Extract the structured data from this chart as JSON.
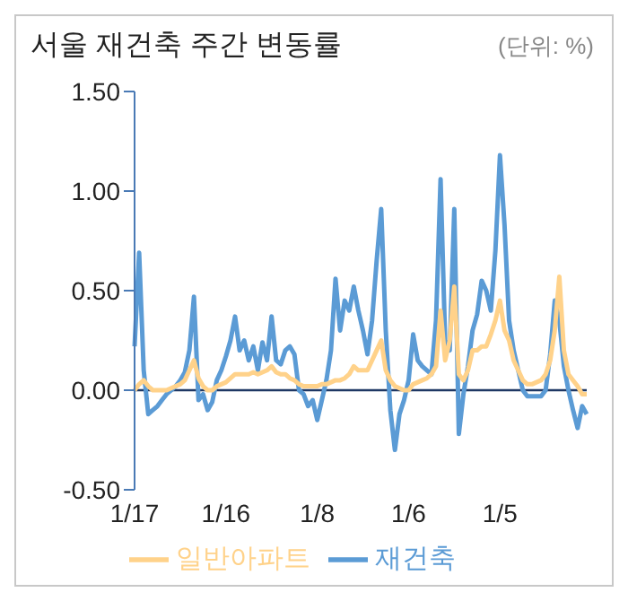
{
  "chart_data": {
    "type": "line",
    "title": "서울 재건축 주간 변동률",
    "annotations": [
      "(단위: %)"
    ],
    "categories": [
      "1/17",
      null,
      null,
      null,
      null,
      null,
      null,
      null,
      null,
      null,
      null,
      null,
      null,
      null,
      null,
      null,
      null,
      null,
      null,
      null,
      "1/16",
      null,
      null,
      null,
      null,
      null,
      null,
      null,
      null,
      null,
      null,
      null,
      null,
      null,
      null,
      null,
      null,
      null,
      null,
      null,
      "1/8",
      null,
      null,
      null,
      null,
      null,
      null,
      null,
      null,
      null,
      null,
      null,
      null,
      null,
      null,
      null,
      null,
      null,
      null,
      null,
      "1/6",
      null,
      null,
      null,
      null,
      null,
      null,
      null,
      null,
      null,
      null,
      null,
      null,
      null,
      null,
      null,
      null,
      null,
      null,
      null,
      "1/5",
      null,
      null,
      null,
      null,
      null,
      null,
      null,
      null,
      null,
      null,
      null,
      null,
      null,
      null,
      null,
      null,
      null,
      null,
      null
    ],
    "series": [
      {
        "name": "재건축",
        "color": "#5b9bd5",
        "values": [
          0.22,
          0.69,
          0.1,
          -0.12,
          -0.1,
          -0.08,
          -0.05,
          -0.02,
          0.0,
          0.02,
          0.05,
          0.09,
          0.2,
          0.47,
          -0.05,
          -0.02,
          -0.1,
          -0.06,
          0.05,
          0.1,
          0.17,
          0.25,
          0.37,
          0.2,
          0.25,
          0.15,
          0.22,
          0.1,
          0.24,
          0.15,
          0.37,
          0.15,
          0.13,
          0.2,
          0.22,
          0.18,
          0.0,
          -0.02,
          -0.08,
          -0.05,
          -0.15,
          -0.05,
          0.05,
          0.2,
          0.56,
          0.3,
          0.45,
          0.4,
          0.52,
          0.4,
          0.3,
          0.18,
          0.35,
          0.65,
          0.91,
          0.3,
          -0.1,
          -0.3,
          -0.12,
          -0.05,
          0.05,
          0.28,
          0.15,
          0.12,
          0.1,
          0.08,
          0.35,
          1.06,
          0.25,
          0.2,
          0.91,
          -0.22,
          -0.02,
          0.12,
          0.3,
          0.38,
          0.55,
          0.5,
          0.4,
          0.7,
          1.18,
          0.83,
          0.35,
          0.2,
          0.1,
          0.0,
          -0.03,
          -0.03,
          -0.03,
          -0.03,
          0.0,
          0.18,
          0.45,
          0.35,
          0.12,
          0.0,
          -0.1,
          -0.19,
          -0.08,
          -0.12
        ]
      },
      {
        "name": "일반아파트",
        "color": "#ffd28a",
        "values": [
          0,
          0.03,
          0.05,
          0.02,
          0,
          0,
          0,
          0,
          0.01,
          0.02,
          0.03,
          0.05,
          0.1,
          0.15,
          0.06,
          0.02,
          0,
          0,
          0.02,
          0.03,
          0.04,
          0.06,
          0.08,
          0.08,
          0.08,
          0.08,
          0.09,
          0.08,
          0.09,
          0.1,
          0.12,
          0.09,
          0.08,
          0.08,
          0.06,
          0.05,
          0.03,
          0.02,
          0.02,
          0.02,
          0.02,
          0.03,
          0.03,
          0.04,
          0.05,
          0.05,
          0.06,
          0.08,
          0.12,
          0.1,
          0.1,
          0.1,
          0.15,
          0.2,
          0.25,
          0.1,
          0.05,
          0.02,
          0.01,
          0.0,
          0.0,
          0.03,
          0.04,
          0.05,
          0.06,
          0.08,
          0.12,
          0.4,
          0.15,
          0.25,
          0.52,
          0.08,
          0.05,
          0.1,
          0.2,
          0.2,
          0.22,
          0.22,
          0.28,
          0.35,
          0.45,
          0.3,
          0.25,
          0.15,
          0.1,
          0.05,
          0.03,
          0.03,
          0.04,
          0.05,
          0.08,
          0.15,
          0.3,
          0.57,
          0.2,
          0.08,
          0.05,
          0.02,
          -0.02,
          -0.02
        ]
      }
    ],
    "ylim": [
      -0.5,
      1.5
    ],
    "yticks": [
      {
        "value": -0.5,
        "label": "-0.50"
      },
      {
        "value": 0,
        "label": "0.00"
      },
      {
        "value": 0.5,
        "label": "0.50"
      },
      {
        "value": 1,
        "label": "1.00"
      },
      {
        "value": 1.5,
        "label": "1.50"
      }
    ],
    "ref_lines": [
      {
        "axis": "y",
        "value": 0,
        "color": "#1f3864"
      }
    ],
    "grid": false,
    "legend": "bottom",
    "marker": "none",
    "line_style": "solid"
  }
}
